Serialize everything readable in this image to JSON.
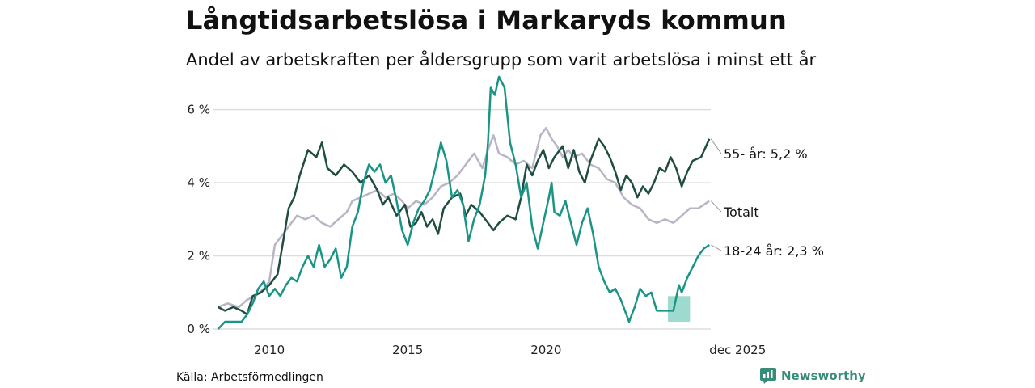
{
  "title": "Långtidsarbetslösa i Markaryds kommun",
  "subtitle": "Andel av arbetskraften per åldersgrupp som varit arbetslösa i minst ett år",
  "source": "Källa: Arbetsförmedlingen",
  "brand": "Newsworthy",
  "colors": {
    "s55": "#1f4d40",
    "youth": "#1a9585",
    "total": "#b9b5c6",
    "grid": "#dddddd",
    "band": "#7fcdbf",
    "brand": "#3a8c7a"
  },
  "chart_data": {
    "type": "line",
    "title": "Långtidsarbetslösa i Markaryds kommun",
    "subtitle": "Andel av arbetskraften per åldersgrupp som varit arbetslösa i minst ett år",
    "xlabel": "",
    "ylabel": "",
    "x_range": [
      2008.1,
      2025.95
    ],
    "ylim": [
      0,
      6.5
    ],
    "y_ticks": [
      {
        "value": 0,
        "label": "0 %"
      },
      {
        "value": 2,
        "label": "2 %"
      },
      {
        "value": 4,
        "label": "4 %"
      },
      {
        "value": 6,
        "label": "6 %"
      }
    ],
    "x_ticks": [
      {
        "value": 2010,
        "label": "2010"
      },
      {
        "value": 2015,
        "label": "2015"
      },
      {
        "value": 2020,
        "label": "2020"
      },
      {
        "value": 2025.9,
        "label": "dec 2025"
      }
    ],
    "grid": true,
    "series": [
      {
        "name": "Totalt",
        "key": "total",
        "end_label": "Totalt",
        "points": [
          [
            2008.15,
            0.6
          ],
          [
            2008.5,
            0.7
          ],
          [
            2008.9,
            0.6
          ],
          [
            2009.2,
            0.8
          ],
          [
            2009.5,
            0.9
          ],
          [
            2009.8,
            1.1
          ],
          [
            2010.0,
            1.3
          ],
          [
            2010.2,
            2.3
          ],
          [
            2010.5,
            2.6
          ],
          [
            2010.8,
            2.9
          ],
          [
            2011.0,
            3.1
          ],
          [
            2011.3,
            3.0
          ],
          [
            2011.6,
            3.1
          ],
          [
            2011.9,
            2.9
          ],
          [
            2012.2,
            2.8
          ],
          [
            2012.5,
            3.0
          ],
          [
            2012.8,
            3.2
          ],
          [
            2013.0,
            3.5
          ],
          [
            2013.3,
            3.6
          ],
          [
            2013.6,
            3.7
          ],
          [
            2013.9,
            3.8
          ],
          [
            2014.2,
            3.6
          ],
          [
            2014.5,
            3.7
          ],
          [
            2014.8,
            3.5
          ],
          [
            2015.0,
            3.3
          ],
          [
            2015.3,
            3.5
          ],
          [
            2015.6,
            3.4
          ],
          [
            2015.9,
            3.6
          ],
          [
            2016.2,
            3.9
          ],
          [
            2016.5,
            4.0
          ],
          [
            2016.8,
            4.2
          ],
          [
            2017.1,
            4.5
          ],
          [
            2017.4,
            4.8
          ],
          [
            2017.7,
            4.4
          ],
          [
            2017.9,
            4.9
          ],
          [
            2018.1,
            5.3
          ],
          [
            2018.3,
            4.8
          ],
          [
            2018.6,
            4.7
          ],
          [
            2018.9,
            4.5
          ],
          [
            2019.2,
            4.6
          ],
          [
            2019.5,
            4.4
          ],
          [
            2019.8,
            5.3
          ],
          [
            2020.0,
            5.5
          ],
          [
            2020.2,
            5.2
          ],
          [
            2020.4,
            5.0
          ],
          [
            2020.6,
            4.7
          ],
          [
            2020.8,
            4.9
          ],
          [
            2021.0,
            4.7
          ],
          [
            2021.3,
            4.8
          ],
          [
            2021.6,
            4.5
          ],
          [
            2021.9,
            4.4
          ],
          [
            2022.2,
            4.1
          ],
          [
            2022.5,
            4.0
          ],
          [
            2022.8,
            3.6
          ],
          [
            2023.1,
            3.4
          ],
          [
            2023.4,
            3.3
          ],
          [
            2023.7,
            3.0
          ],
          [
            2024.0,
            2.9
          ],
          [
            2024.3,
            3.0
          ],
          [
            2024.6,
            2.9
          ],
          [
            2024.9,
            3.1
          ],
          [
            2025.2,
            3.3
          ],
          [
            2025.5,
            3.3
          ],
          [
            2025.9,
            3.5
          ]
        ]
      },
      {
        "name": "55- år",
        "key": "s55",
        "end_label": "55- år: 5,2 %",
        "points": [
          [
            2008.15,
            0.6
          ],
          [
            2008.4,
            0.5
          ],
          [
            2008.7,
            0.6
          ],
          [
            2009.0,
            0.5
          ],
          [
            2009.2,
            0.4
          ],
          [
            2009.4,
            0.9
          ],
          [
            2009.7,
            1.0
          ],
          [
            2010.0,
            1.2
          ],
          [
            2010.3,
            1.5
          ],
          [
            2010.5,
            2.4
          ],
          [
            2010.7,
            3.3
          ],
          [
            2010.9,
            3.6
          ],
          [
            2011.1,
            4.2
          ],
          [
            2011.4,
            4.9
          ],
          [
            2011.7,
            4.7
          ],
          [
            2011.9,
            5.1
          ],
          [
            2012.1,
            4.4
          ],
          [
            2012.4,
            4.2
          ],
          [
            2012.7,
            4.5
          ],
          [
            2013.0,
            4.3
          ],
          [
            2013.3,
            4.0
          ],
          [
            2013.6,
            4.2
          ],
          [
            2013.9,
            3.8
          ],
          [
            2014.1,
            3.4
          ],
          [
            2014.3,
            3.6
          ],
          [
            2014.6,
            3.1
          ],
          [
            2014.9,
            3.4
          ],
          [
            2015.1,
            2.8
          ],
          [
            2015.3,
            2.9
          ],
          [
            2015.5,
            3.2
          ],
          [
            2015.7,
            2.8
          ],
          [
            2015.9,
            3.0
          ],
          [
            2016.1,
            2.6
          ],
          [
            2016.3,
            3.3
          ],
          [
            2016.6,
            3.6
          ],
          [
            2016.9,
            3.7
          ],
          [
            2017.1,
            3.1
          ],
          [
            2017.3,
            3.4
          ],
          [
            2017.6,
            3.2
          ],
          [
            2017.9,
            2.9
          ],
          [
            2018.1,
            2.7
          ],
          [
            2018.3,
            2.9
          ],
          [
            2018.6,
            3.1
          ],
          [
            2018.9,
            3.0
          ],
          [
            2019.1,
            3.6
          ],
          [
            2019.3,
            4.5
          ],
          [
            2019.5,
            4.2
          ],
          [
            2019.7,
            4.6
          ],
          [
            2019.9,
            4.9
          ],
          [
            2020.1,
            4.4
          ],
          [
            2020.3,
            4.7
          ],
          [
            2020.6,
            5.0
          ],
          [
            2020.8,
            4.4
          ],
          [
            2021.0,
            4.9
          ],
          [
            2021.2,
            4.3
          ],
          [
            2021.4,
            4.0
          ],
          [
            2021.6,
            4.6
          ],
          [
            2021.9,
            5.2
          ],
          [
            2022.1,
            5.0
          ],
          [
            2022.3,
            4.7
          ],
          [
            2022.5,
            4.3
          ],
          [
            2022.7,
            3.8
          ],
          [
            2022.9,
            4.2
          ],
          [
            2023.1,
            4.0
          ],
          [
            2023.3,
            3.6
          ],
          [
            2023.5,
            3.9
          ],
          [
            2023.7,
            3.7
          ],
          [
            2023.9,
            4.0
          ],
          [
            2024.1,
            4.4
          ],
          [
            2024.3,
            4.3
          ],
          [
            2024.5,
            4.7
          ],
          [
            2024.7,
            4.4
          ],
          [
            2024.9,
            3.9
          ],
          [
            2025.1,
            4.3
          ],
          [
            2025.3,
            4.6
          ],
          [
            2025.6,
            4.7
          ],
          [
            2025.9,
            5.2
          ]
        ]
      },
      {
        "name": "18-24 år",
        "key": "youth",
        "end_label": "18-24 år: 2,3 %",
        "points": [
          [
            2008.15,
            0.0
          ],
          [
            2008.4,
            0.2
          ],
          [
            2008.7,
            0.2
          ],
          [
            2009.0,
            0.2
          ],
          [
            2009.2,
            0.4
          ],
          [
            2009.4,
            0.7
          ],
          [
            2009.6,
            1.1
          ],
          [
            2009.8,
            1.3
          ],
          [
            2010.0,
            0.9
          ],
          [
            2010.2,
            1.1
          ],
          [
            2010.4,
            0.9
          ],
          [
            2010.6,
            1.2
          ],
          [
            2010.8,
            1.4
          ],
          [
            2011.0,
            1.3
          ],
          [
            2011.2,
            1.7
          ],
          [
            2011.4,
            2.0
          ],
          [
            2011.6,
            1.7
          ],
          [
            2011.8,
            2.3
          ],
          [
            2012.0,
            1.7
          ],
          [
            2012.2,
            1.9
          ],
          [
            2012.4,
            2.2
          ],
          [
            2012.6,
            1.4
          ],
          [
            2012.8,
            1.7
          ],
          [
            2013.0,
            2.8
          ],
          [
            2013.2,
            3.2
          ],
          [
            2013.4,
            4.0
          ],
          [
            2013.6,
            4.5
          ],
          [
            2013.8,
            4.3
          ],
          [
            2014.0,
            4.5
          ],
          [
            2014.2,
            4.0
          ],
          [
            2014.4,
            4.2
          ],
          [
            2014.6,
            3.5
          ],
          [
            2014.8,
            2.7
          ],
          [
            2015.0,
            2.3
          ],
          [
            2015.2,
            2.9
          ],
          [
            2015.4,
            3.3
          ],
          [
            2015.6,
            3.5
          ],
          [
            2015.8,
            3.8
          ],
          [
            2016.0,
            4.4
          ],
          [
            2016.2,
            5.1
          ],
          [
            2016.4,
            4.6
          ],
          [
            2016.6,
            3.6
          ],
          [
            2016.8,
            3.8
          ],
          [
            2017.0,
            3.4
          ],
          [
            2017.2,
            2.4
          ],
          [
            2017.4,
            3.0
          ],
          [
            2017.6,
            3.4
          ],
          [
            2017.8,
            4.2
          ],
          [
            2017.9,
            5.1
          ],
          [
            2018.0,
            6.6
          ],
          [
            2018.15,
            6.4
          ],
          [
            2018.3,
            6.9
          ],
          [
            2018.5,
            6.6
          ],
          [
            2018.7,
            5.1
          ],
          [
            2018.9,
            4.5
          ],
          [
            2019.1,
            3.6
          ],
          [
            2019.3,
            4.0
          ],
          [
            2019.5,
            2.8
          ],
          [
            2019.7,
            2.2
          ],
          [
            2019.9,
            2.9
          ],
          [
            2020.1,
            3.6
          ],
          [
            2020.2,
            4.0
          ],
          [
            2020.3,
            3.2
          ],
          [
            2020.5,
            3.1
          ],
          [
            2020.7,
            3.5
          ],
          [
            2020.9,
            2.9
          ],
          [
            2021.1,
            2.3
          ],
          [
            2021.3,
            2.9
          ],
          [
            2021.5,
            3.3
          ],
          [
            2021.7,
            2.6
          ],
          [
            2021.9,
            1.7
          ],
          [
            2022.1,
            1.3
          ],
          [
            2022.3,
            1.0
          ],
          [
            2022.5,
            1.1
          ],
          [
            2022.7,
            0.8
          ],
          [
            2022.9,
            0.4
          ],
          [
            2023.0,
            0.2
          ],
          [
            2023.2,
            0.6
          ],
          [
            2023.4,
            1.1
          ],
          [
            2023.6,
            0.9
          ],
          [
            2023.8,
            1.0
          ],
          [
            2024.0,
            0.5
          ],
          [
            2024.2,
            0.5
          ],
          [
            2024.4,
            0.5
          ],
          [
            2024.6,
            0.5
          ],
          [
            2024.8,
            1.2
          ],
          [
            2024.9,
            1.0
          ],
          [
            2025.1,
            1.4
          ],
          [
            2025.3,
            1.7
          ],
          [
            2025.5,
            2.0
          ],
          [
            2025.7,
            2.2
          ],
          [
            2025.9,
            2.3
          ]
        ]
      }
    ],
    "uncertainty_band": {
      "series": "18-24 år",
      "x_start": 2024.4,
      "x_end": 2025.2,
      "low": 0.2,
      "high": 0.9
    }
  }
}
